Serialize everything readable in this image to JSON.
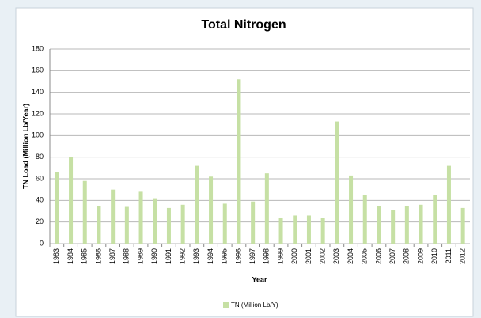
{
  "chart_data": {
    "type": "bar",
    "title": "Total Nitrogen",
    "x_label": "Year",
    "y_label": "TN Load (Million Lb/Year)",
    "categories": [
      "1983",
      "1984",
      "1985",
      "1986",
      "1987",
      "1988",
      "1989",
      "1990",
      "1991",
      "1992",
      "1993",
      "1994",
      "1995",
      "1996",
      "1997",
      "1998",
      "1999",
      "2000",
      "2001",
      "2002",
      "2003",
      "2004",
      "2005",
      "2006",
      "2007",
      "2008",
      "2009",
      "2010",
      "2011",
      "2012"
    ],
    "series": [
      {
        "name": "TN (Million Lb/Y)",
        "color": "#c6e0a4",
        "values": [
          66,
          80,
          58,
          35,
          50,
          34,
          48,
          42,
          33,
          36,
          72,
          62,
          37,
          152,
          39,
          65,
          24,
          26,
          26,
          24,
          113,
          63,
          45,
          35,
          31,
          35,
          36,
          45,
          72,
          33
        ]
      }
    ],
    "ylim": [
      0,
      180
    ],
    "yticks": [
      0,
      20,
      40,
      60,
      80,
      100,
      120,
      140,
      160,
      180
    ],
    "grid": true,
    "legend": "bottom"
  }
}
